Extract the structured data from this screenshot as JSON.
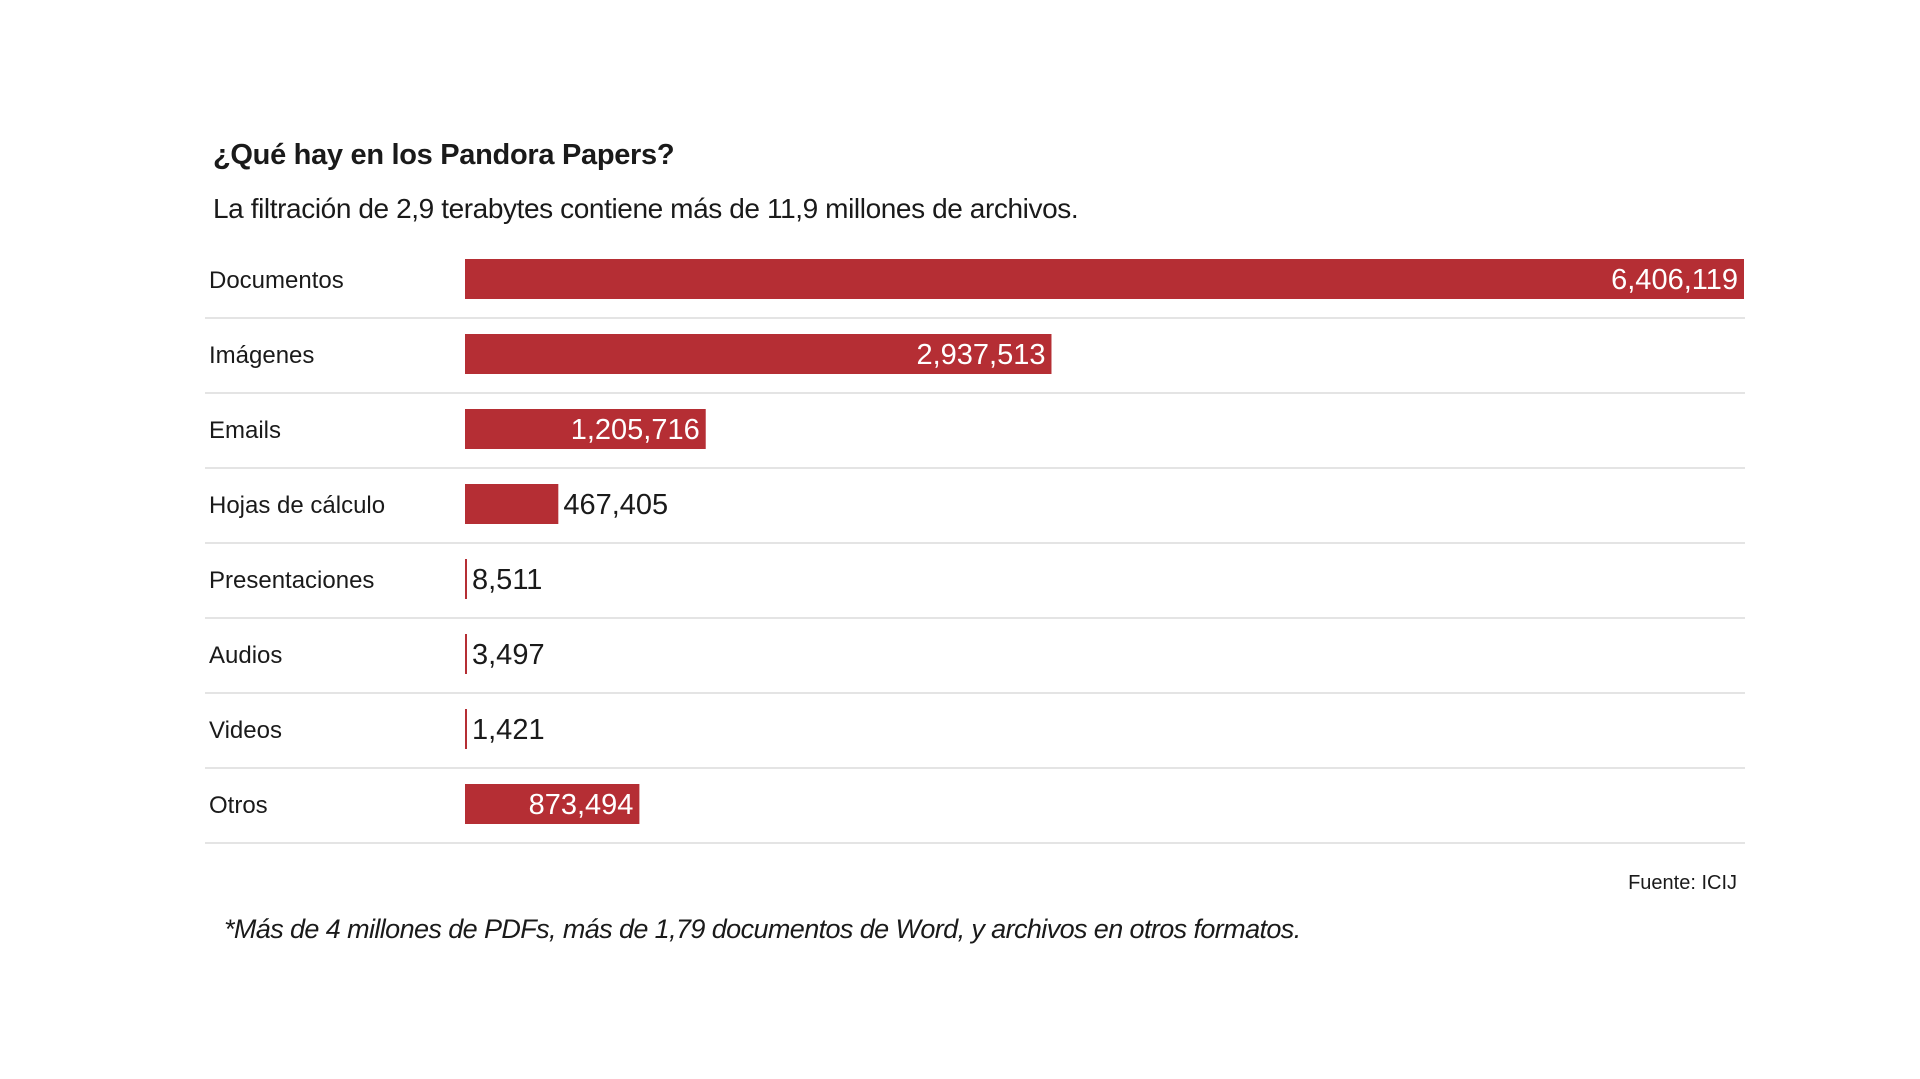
{
  "chart_data": {
    "type": "bar",
    "orientation": "horizontal",
    "title": "¿Qué hay en los Pandora Papers?",
    "subtitle": "La filtración de 2,9 terabytes contiene más de 11,9 millones de archivos.",
    "categories": [
      "Documentos",
      "Imágenes",
      "Emails",
      "Hojas de cálculo",
      "Presentaciones",
      "Audios",
      "Videos",
      "Otros"
    ],
    "values": [
      6406119,
      2937513,
      1205716,
      467405,
      8511,
      3497,
      1421,
      873494
    ],
    "value_labels": [
      "6,406,119",
      "2,937,513",
      "1,205,716",
      "467,405",
      "8,511",
      "3,497",
      "1,421",
      "873,494"
    ],
    "xlim": [
      0,
      6406119
    ],
    "xlabel": "",
    "ylabel": "",
    "grid": false,
    "source": "Fuente: ICIJ",
    "footnote": "*Más de 4 millones de PDFs, más de 1,79 documentos de Word, y archivos en otros formatos.",
    "colors": {
      "bar": "#b52e34",
      "divider": "#dcdcdc",
      "label_inside": "#ffffff",
      "label_outside": "#1a1a1a"
    }
  }
}
